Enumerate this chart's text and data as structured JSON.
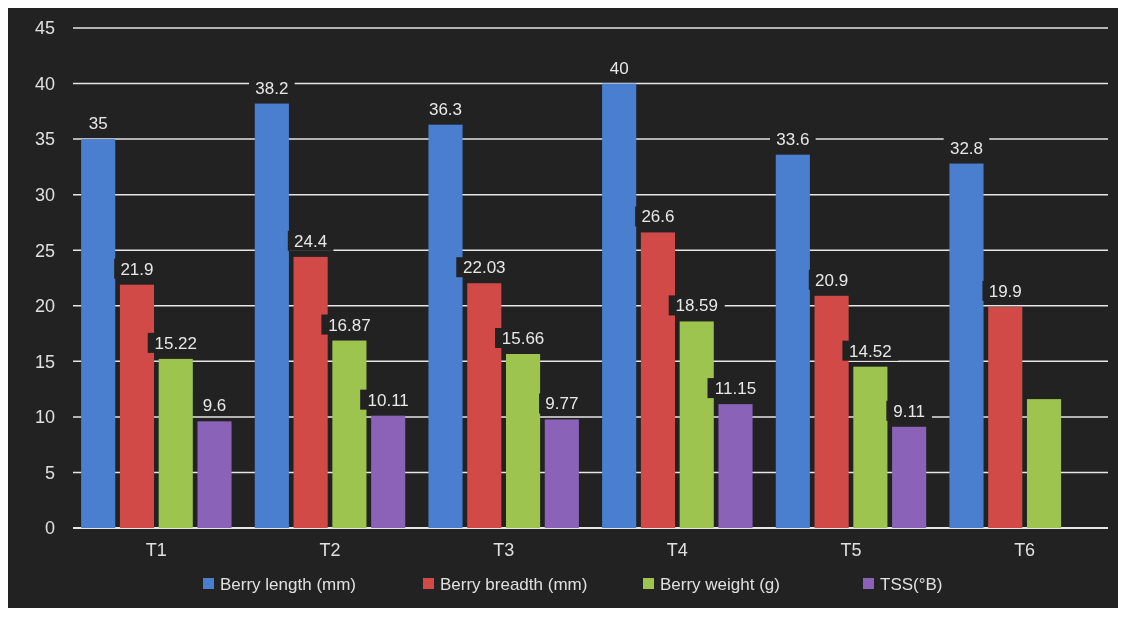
{
  "chart_data": {
    "type": "bar",
    "categories": [
      "T1",
      "T2",
      "T3",
      "T4",
      "T5",
      "T6"
    ],
    "series": [
      {
        "name": "Berry length (mm)",
        "color": "#4a7fd0",
        "values": [
          35,
          38.2,
          36.3,
          40,
          33.6,
          32.8
        ],
        "value_labels": [
          "35",
          "38.2",
          "36.3",
          "40",
          "33.6",
          "32.8"
        ]
      },
      {
        "name": "Berry breadth (mm)",
        "color": "#d24a48",
        "values": [
          21.9,
          24.4,
          22.03,
          26.6,
          20.9,
          19.9
        ],
        "value_labels": [
          "21.9",
          "24.4",
          "22.03",
          "26.6",
          "20.9",
          "19.9"
        ]
      },
      {
        "name": "Berry weight (g)",
        "color": "#9cc44e",
        "values": [
          15.22,
          16.87,
          15.66,
          18.59,
          14.52,
          11.6
        ],
        "value_labels": [
          "15.22",
          "16.87",
          "15.66",
          "18.59",
          "14.52",
          null
        ]
      },
      {
        "name": "TSS(°B)",
        "color": "#8a62b8",
        "values": [
          9.6,
          10.11,
          9.77,
          11.15,
          9.11,
          null
        ],
        "value_labels": [
          "9.6",
          "10.11",
          "9.77",
          "11.15",
          "9.11",
          null
        ]
      }
    ],
    "ylim": [
      0,
      45
    ],
    "yticks": [
      0,
      5,
      10,
      15,
      20,
      25,
      30,
      35,
      40,
      45
    ],
    "grid": "y",
    "legend": "bottom"
  }
}
